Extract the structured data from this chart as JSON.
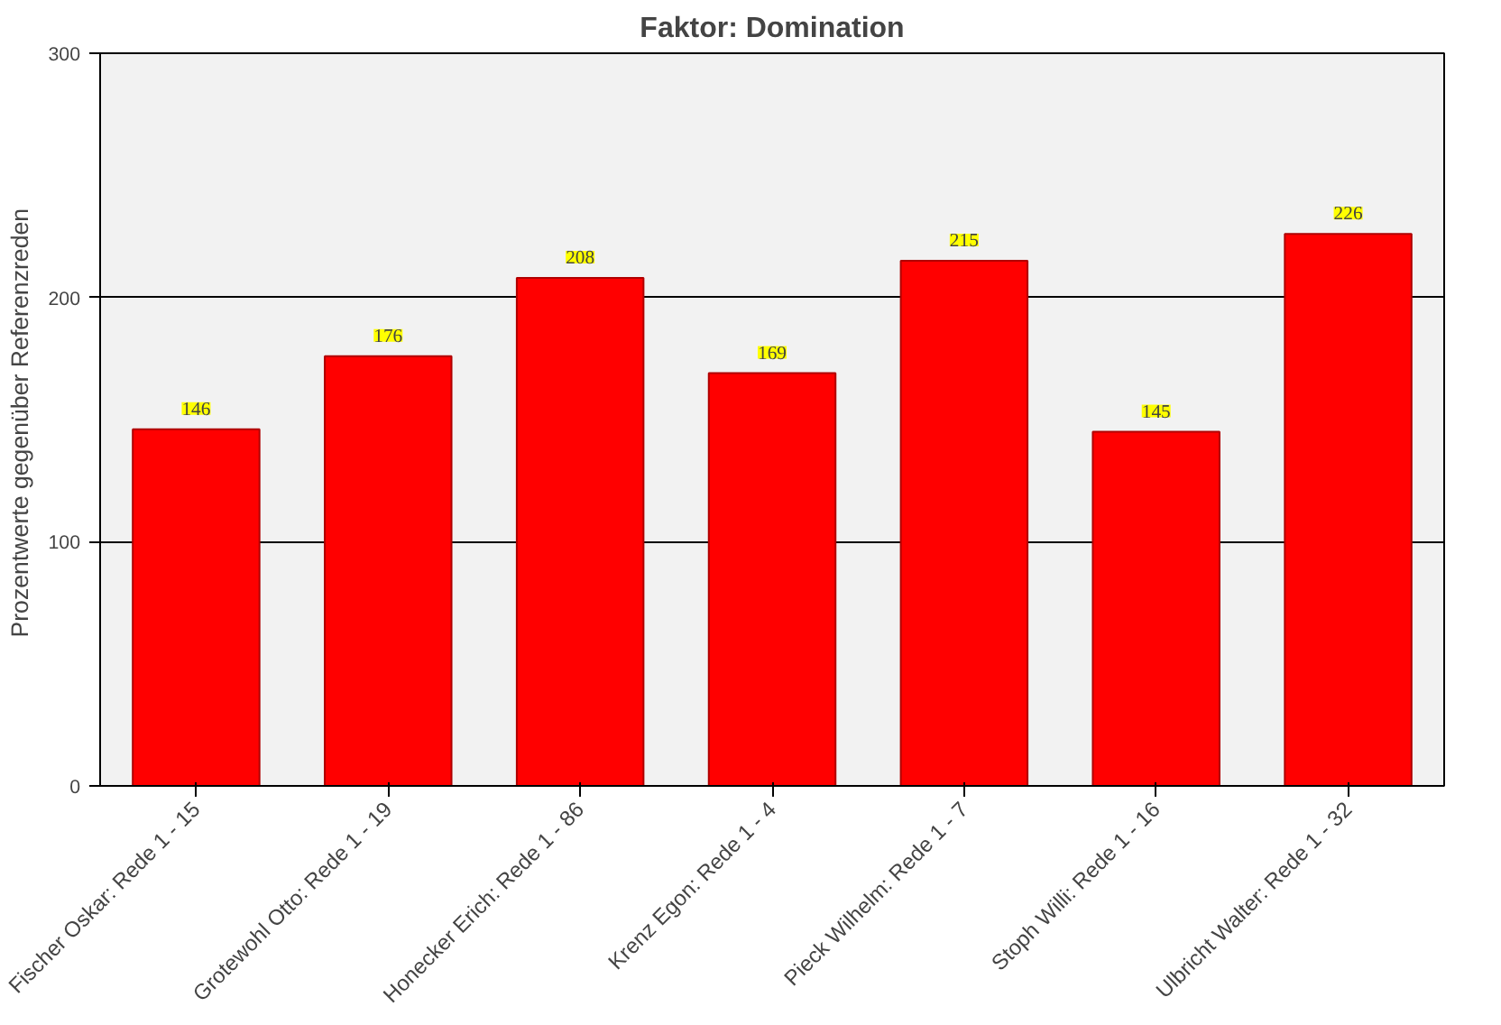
{
  "chart_data": {
    "type": "bar",
    "title": "Faktor: Domination",
    "ylabel": "Prozentwerte  gegenüber Referenzreden",
    "categories": [
      "Fischer Oskar: Rede 1 - 15",
      "Grotewohl Otto: Rede 1 - 19",
      "Honecker Erich: Rede 1 - 86",
      "Krenz Egon: Rede 1 - 4",
      "Pieck Wilhelm: Rede 1 - 7",
      "Stoph Willi: Rede 1 - 16",
      "Ulbricht Walter: Rede 1 - 32"
    ],
    "values": [
      146,
      176,
      208,
      169,
      215,
      145,
      226
    ],
    "color": "#ff0000",
    "ylim": [
      0,
      300
    ],
    "yticks": [
      0,
      100,
      200,
      300
    ],
    "grid": "y",
    "data_labels": true
  }
}
